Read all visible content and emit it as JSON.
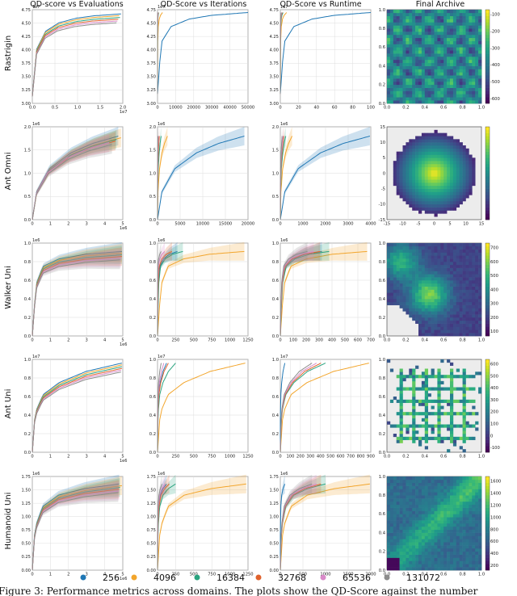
{
  "column_titles": [
    "QD-score vs Evaluations",
    "QD-Score vs Iterations",
    "QD-Score vs Runtime",
    "Final Archive"
  ],
  "row_labels": [
    "Rastrigin",
    "Ant Omni",
    "Walker Uni",
    "Ant Uni",
    "Humanoid Uni"
  ],
  "legend": {
    "labels": [
      "256",
      "4096",
      "16384",
      "32768",
      "65536",
      "131072"
    ],
    "colors": [
      "#1f77b4",
      "#f2a52c",
      "#2aa37f",
      "#e0622c",
      "#d98ac9",
      "#8c8c8c"
    ]
  },
  "caption": "Figure 3: Performance metrics across domains. The plots show the QD-Score against the number",
  "chart_data": [
    {
      "type": "line",
      "row": "Rastrigin",
      "panel": "QD-score vs Evaluations",
      "xlim": [
        0,
        20000000.0
      ],
      "ylim": [
        30000000.0,
        47500000.0
      ],
      "xticks": [
        "0.0",
        "0.5",
        "1.0",
        "1.5",
        "2.0"
      ],
      "yticks": [
        "3.00",
        "3.25",
        "3.50",
        "3.75",
        "4.00",
        "4.25",
        "4.50",
        "4.75"
      ],
      "xmult": "1e7",
      "ymult": "1e7",
      "series_shape": [
        [
          0.0,
          0.08
        ],
        [
          0.05,
          0.58
        ],
        [
          0.15,
          0.77
        ],
        [
          0.3,
          0.86
        ],
        [
          0.5,
          0.91
        ],
        [
          0.7,
          0.935
        ],
        [
          1.0,
          0.955
        ]
      ],
      "series_ends": [
        0.98,
        0.96,
        0.97,
        0.95,
        0.94,
        0.93
      ],
      "series_starts": [
        0.0,
        0.0,
        0.0,
        0.0,
        0.0,
        0.0
      ]
    },
    {
      "type": "line",
      "row": "Rastrigin",
      "panel": "QD-Score vs Iterations",
      "xlim": [
        0,
        50000
      ],
      "ylim": [
        30000000.0,
        47500000.0
      ],
      "xticks": [
        "0",
        "10000",
        "20000",
        "30000",
        "40000",
        "50000"
      ],
      "yticks": [
        "3.00",
        "3.25",
        "3.50",
        "3.75",
        "4.00",
        "4.25",
        "4.50",
        "4.75"
      ],
      "xmult": "",
      "ymult": "1e7",
      "series_shape": [
        [
          0.0,
          0.1
        ],
        [
          0.04,
          0.65
        ],
        [
          0.15,
          0.82
        ],
        [
          0.35,
          0.9
        ],
        [
          0.6,
          0.94
        ],
        [
          1.0,
          0.97
        ]
      ],
      "series_ends": [
        1.0,
        0.055,
        0.012,
        0.008,
        0.004,
        0.002
      ]
    },
    {
      "type": "line",
      "row": "Rastrigin",
      "panel": "QD-Score vs Runtime",
      "xlim": [
        0,
        100
      ],
      "ylim": [
        30000000.0,
        47500000.0
      ],
      "xticks": [
        "0",
        "20",
        "40",
        "60",
        "80",
        "100"
      ],
      "yticks": [
        "3.00",
        "3.25",
        "3.50",
        "3.75",
        "4.00",
        "4.25",
        "4.50",
        "4.75"
      ],
      "xmult": "",
      "ymult": "1e7",
      "series_shape": [
        [
          0.0,
          0.1
        ],
        [
          0.04,
          0.65
        ],
        [
          0.15,
          0.82
        ],
        [
          0.35,
          0.9
        ],
        [
          0.6,
          0.94
        ],
        [
          1.0,
          0.97
        ]
      ],
      "series_ends": [
        1.0,
        0.07,
        0.03,
        0.02,
        0.015,
        0.01
      ]
    },
    {
      "type": "heatmap",
      "row": "Rastrigin",
      "panel": "Final Archive",
      "xlim": [
        0,
        1
      ],
      "ylim": [
        0,
        1
      ],
      "xticks": [
        "0.0",
        "0.2",
        "0.4",
        "0.6",
        "0.8",
        "1.0"
      ],
      "yticks": [
        "0.0",
        "0.2",
        "0.4",
        "0.6",
        "0.8",
        "1.0"
      ],
      "colorbar_ticks": [
        "-100",
        "-200",
        "-300",
        "-400",
        "-500",
        "-600"
      ],
      "pattern": "grid"
    },
    {
      "type": "line",
      "row": "Ant Omni",
      "panel": "QD-score vs Evaluations",
      "xlim": [
        0,
        5000000.0
      ],
      "ylim": [
        0,
        2000000.0
      ],
      "xticks": [
        "0",
        "1",
        "2",
        "3",
        "4",
        "5"
      ],
      "yticks": [
        "0.0",
        "0.5",
        "1.0",
        "1.5",
        "2.0"
      ],
      "xmult": "1e6",
      "ymult": "1e6",
      "series_shape": [
        [
          0.0,
          0.0
        ],
        [
          0.05,
          0.3
        ],
        [
          0.2,
          0.55
        ],
        [
          0.45,
          0.72
        ],
        [
          0.7,
          0.82
        ],
        [
          1.0,
          0.9
        ]
      ],
      "series_ends": [
        0.95,
        0.98,
        0.93,
        0.92,
        0.85,
        0.88
      ],
      "band": true
    },
    {
      "type": "line",
      "row": "Ant Omni",
      "panel": "QD-Score vs Iterations",
      "xlim": [
        0,
        20000
      ],
      "ylim": [
        0,
        2000000.0
      ],
      "xticks": [
        "0",
        "5000",
        "10000",
        "15000",
        "20000"
      ],
      "yticks": [
        "0.0",
        "0.5",
        "1.0",
        "1.5",
        "2.0"
      ],
      "xmult": "",
      "ymult": "1e6",
      "series_shape": [
        [
          0.0,
          0.0
        ],
        [
          0.05,
          0.3
        ],
        [
          0.2,
          0.55
        ],
        [
          0.45,
          0.72
        ],
        [
          0.7,
          0.82
        ],
        [
          1.0,
          0.9
        ]
      ],
      "series_ends": [
        0.96,
        0.11,
        0.04,
        0.02,
        0.01,
        0.005
      ],
      "band": true
    },
    {
      "type": "line",
      "row": "Ant Omni",
      "panel": "QD-Score vs Runtime",
      "xlim": [
        0,
        4000
      ],
      "ylim": [
        0,
        2000000.0
      ],
      "xticks": [
        "0",
        "1000",
        "2000",
        "3000",
        "4000"
      ],
      "yticks": [
        "0.0",
        "0.5",
        "1.0",
        "1.5",
        "2.0"
      ],
      "xmult": "",
      "ymult": "1e6",
      "series_shape": [
        [
          0.0,
          0.0
        ],
        [
          0.05,
          0.3
        ],
        [
          0.2,
          0.55
        ],
        [
          0.45,
          0.72
        ],
        [
          0.7,
          0.82
        ],
        [
          1.0,
          0.9
        ]
      ],
      "series_ends": [
        0.99,
        0.13,
        0.06,
        0.04,
        0.03,
        0.02
      ],
      "band": true
    },
    {
      "type": "heatmap",
      "row": "Ant Omni",
      "panel": "Final Archive",
      "xlim": [
        -15,
        15
      ],
      "ylim": [
        -15,
        15
      ],
      "xticks": [
        "-15",
        "-10",
        "-5",
        "0",
        "5",
        "10",
        "15"
      ],
      "yticks": [
        "-15",
        "-10",
        "-5",
        "0",
        "5",
        "10",
        "15"
      ],
      "colorbar_ticks": [],
      "pattern": "disc"
    },
    {
      "type": "line",
      "row": "Walker Uni",
      "panel": "QD-score vs Evaluations",
      "xlim": [
        0,
        5000000.0
      ],
      "ylim": [
        0,
        1200000.0
      ],
      "xticks": [
        "0",
        "1",
        "2",
        "3",
        "4",
        "5"
      ],
      "yticks": [
        "0.0",
        "0.2",
        "0.4",
        "0.6",
        "0.8",
        "1.0"
      ],
      "xmult": "1e6",
      "ymult": "1e6",
      "series_shape": [
        [
          0.0,
          0.0
        ],
        [
          0.04,
          0.55
        ],
        [
          0.12,
          0.75
        ],
        [
          0.3,
          0.83
        ],
        [
          0.6,
          0.88
        ],
        [
          1.0,
          0.91
        ]
      ],
      "series_ends": [
        0.99,
        0.99,
        0.99,
        0.99,
        0.98,
        0.97
      ],
      "band": true
    },
    {
      "type": "line",
      "row": "Walker Uni",
      "panel": "QD-Score vs Iterations",
      "xlim": [
        0,
        1250
      ],
      "ylim": [
        0,
        1200000.0
      ],
      "xticks": [
        "0",
        "250",
        "500",
        "750",
        "1000",
        "1250"
      ],
      "yticks": [
        "0.0",
        "0.2",
        "0.4",
        "0.6",
        "0.8",
        "1.0"
      ],
      "xmult": "",
      "ymult": "1e6",
      "series_shape": [
        [
          0.0,
          0.0
        ],
        [
          0.04,
          0.55
        ],
        [
          0.12,
          0.75
        ],
        [
          0.3,
          0.83
        ],
        [
          0.6,
          0.88
        ],
        [
          1.0,
          0.91
        ]
      ],
      "series_ends": [
        0.22,
        0.96,
        0.28,
        0.16,
        0.08,
        0.04
      ],
      "band": true
    },
    {
      "type": "line",
      "row": "Walker Uni",
      "panel": "QD-Score vs Runtime",
      "xlim": [
        0,
        750
      ],
      "ylim": [
        0,
        1200000.0
      ],
      "xticks": [
        "0",
        "100",
        "200",
        "300",
        "400",
        "500",
        "600",
        "700"
      ],
      "yticks": [
        "0.0",
        "0.2",
        "0.4",
        "0.6",
        "0.8",
        "1.0"
      ],
      "xmult": "",
      "ymult": "1e6",
      "series_shape": [
        [
          0.0,
          0.0
        ],
        [
          0.04,
          0.55
        ],
        [
          0.12,
          0.75
        ],
        [
          0.3,
          0.83
        ],
        [
          0.6,
          0.88
        ],
        [
          1.0,
          0.91
        ]
      ],
      "series_ends": [
        0.46,
        0.96,
        0.54,
        0.44,
        0.37,
        0.3
      ],
      "band": true
    },
    {
      "type": "heatmap",
      "row": "Walker Uni",
      "panel": "Final Archive",
      "xlim": [
        0,
        1
      ],
      "ylim": [
        0,
        1
      ],
      "xticks": [
        "0.0",
        "0.2",
        "0.4",
        "0.6",
        "0.8",
        "1.0"
      ],
      "yticks": [
        "0.0",
        "0.2",
        "0.4",
        "0.6",
        "0.8",
        "1.0"
      ],
      "colorbar_ticks": [
        "100",
        "200",
        "300",
        "400",
        "500",
        "600",
        "700"
      ],
      "pattern": "walker"
    },
    {
      "type": "line",
      "row": "Ant Uni",
      "panel": "QD-score vs Evaluations",
      "xlim": [
        0,
        5000000.0
      ],
      "ylim": [
        0,
        10500000.0
      ],
      "xticks": [
        "0",
        "1",
        "2",
        "3",
        "4",
        "5"
      ],
      "yticks": [
        "0.0",
        "0.2",
        "0.4",
        "0.6",
        "0.8",
        "1.0"
      ],
      "xmult": "1e6",
      "ymult": "1e7",
      "series_shape": [
        [
          0.0,
          0.0
        ],
        [
          0.03,
          0.42
        ],
        [
          0.12,
          0.62
        ],
        [
          0.3,
          0.75
        ],
        [
          0.6,
          0.87
        ],
        [
          1.0,
          0.96
        ]
      ],
      "series_ends": [
        0.99,
        0.99,
        0.99,
        0.99,
        0.98,
        0.98
      ]
    },
    {
      "type": "line",
      "row": "Ant Uni",
      "panel": "QD-Score vs Iterations",
      "xlim": [
        0,
        1250
      ],
      "ylim": [
        0,
        10500000.0
      ],
      "xticks": [
        "0",
        "250",
        "500",
        "750",
        "1000",
        "1250"
      ],
      "yticks": [
        "0.0",
        "0.2",
        "0.4",
        "0.6",
        "0.8",
        "1.0"
      ],
      "xmult": "",
      "ymult": "1e7",
      "series_shape": [
        [
          0.0,
          0.0
        ],
        [
          0.03,
          0.42
        ],
        [
          0.12,
          0.62
        ],
        [
          0.3,
          0.75
        ],
        [
          0.6,
          0.87
        ],
        [
          1.0,
          0.96
        ]
      ],
      "series_ends": [
        0.1,
        0.97,
        0.2,
        0.12,
        0.07,
        0.04
      ]
    },
    {
      "type": "line",
      "row": "Ant Uni",
      "panel": "QD-Score vs Runtime",
      "xlim": [
        0,
        900
      ],
      "ylim": [
        0,
        10500000.0
      ],
      "xticks": [
        "0",
        "100",
        "200",
        "300",
        "400",
        "500",
        "600",
        "700",
        "800",
        "900"
      ],
      "yticks": [
        "0.0",
        "0.2",
        "0.4",
        "0.6",
        "0.8",
        "1.0"
      ],
      "xmult": "",
      "ymult": "1e7",
      "series_shape": [
        [
          0.0,
          0.0
        ],
        [
          0.03,
          0.42
        ],
        [
          0.12,
          0.62
        ],
        [
          0.3,
          0.75
        ],
        [
          0.6,
          0.87
        ],
        [
          1.0,
          0.96
        ]
      ],
      "series_ends": [
        0.05,
        0.98,
        0.5,
        0.45,
        0.4,
        0.35
      ]
    },
    {
      "type": "heatmap",
      "row": "Ant Uni",
      "panel": "Final Archive",
      "xlim": [
        0,
        1
      ],
      "ylim": [
        0,
        1
      ],
      "xticks": [
        "0.0",
        "0.2",
        "0.4",
        "0.6",
        "0.8",
        "1.0"
      ],
      "yticks": [
        "0.0",
        "0.2",
        "0.4",
        "0.6",
        "0.8",
        "1.0"
      ],
      "colorbar_ticks": [
        "-100",
        "0",
        "100",
        "200",
        "300",
        "400",
        "500",
        "600"
      ],
      "pattern": "antgrid"
    },
    {
      "type": "line",
      "row": "Humanoid Uni",
      "panel": "QD-score vs Evaluations",
      "xlim": [
        0,
        5000000.0
      ],
      "ylim": [
        0,
        1800000.0
      ],
      "xticks": [
        "0",
        "1",
        "2",
        "3",
        "4",
        "5"
      ],
      "yticks": [
        "0.00",
        "0.25",
        "0.50",
        "0.75",
        "1.00",
        "1.25",
        "1.50",
        "1.75"
      ],
      "xmult": "1e6",
      "ymult": "1e6",
      "series_shape": [
        [
          0.0,
          0.0
        ],
        [
          0.03,
          0.45
        ],
        [
          0.12,
          0.68
        ],
        [
          0.3,
          0.8
        ],
        [
          0.6,
          0.87
        ],
        [
          1.0,
          0.92
        ]
      ],
      "series_ends": [
        0.96,
        0.99,
        0.97,
        0.96,
        0.96,
        0.95
      ],
      "band": true
    },
    {
      "type": "line",
      "row": "Humanoid Uni",
      "panel": "QD-Score vs Iterations",
      "xlim": [
        0,
        1250
      ],
      "ylim": [
        0,
        1800000.0
      ],
      "xticks": [
        "0",
        "250",
        "500",
        "750",
        "1000",
        "1250"
      ],
      "yticks": [
        "0.00",
        "0.25",
        "0.50",
        "0.75",
        "1.00",
        "1.25",
        "1.50",
        "1.75"
      ],
      "xmult": "",
      "ymult": "1e6",
      "series_shape": [
        [
          0.0,
          0.0
        ],
        [
          0.03,
          0.45
        ],
        [
          0.12,
          0.68
        ],
        [
          0.3,
          0.8
        ],
        [
          0.6,
          0.87
        ],
        [
          1.0,
          0.92
        ]
      ],
      "series_ends": [
        0.1,
        0.98,
        0.2,
        0.13,
        0.08,
        0.05
      ],
      "band": true
    },
    {
      "type": "line",
      "row": "Humanoid Uni",
      "panel": "QD-Score vs Runtime",
      "xlim": [
        0,
        2000
      ],
      "ylim": [
        0,
        1800000.0
      ],
      "xticks": [
        "0",
        "500",
        "1000",
        "1500",
        "2000"
      ],
      "yticks": [
        "0.00",
        "0.25",
        "0.50",
        "0.75",
        "1.00",
        "1.25",
        "1.50",
        "1.75"
      ],
      "xmult": "",
      "ymult": "1e6",
      "series_shape": [
        [
          0.0,
          0.0
        ],
        [
          0.03,
          0.45
        ],
        [
          0.12,
          0.68
        ],
        [
          0.3,
          0.8
        ],
        [
          0.6,
          0.87
        ],
        [
          1.0,
          0.92
        ]
      ],
      "series_ends": [
        0.05,
        0.99,
        0.5,
        0.45,
        0.4,
        0.35
      ],
      "band": true
    },
    {
      "type": "heatmap",
      "row": "Humanoid Uni",
      "panel": "Final Archive",
      "xlim": [
        0,
        1
      ],
      "ylim": [
        0,
        1
      ],
      "xticks": [
        "0.0",
        "0.2",
        "0.4",
        "0.6",
        "0.8",
        "1.0"
      ],
      "yticks": [
        "0.0",
        "0.2",
        "0.4",
        "0.6",
        "0.8",
        "1.0"
      ],
      "colorbar_ticks": [
        "200",
        "400",
        "600",
        "800",
        "1000",
        "1200",
        "1400",
        "1600"
      ],
      "pattern": "humanoid"
    }
  ]
}
